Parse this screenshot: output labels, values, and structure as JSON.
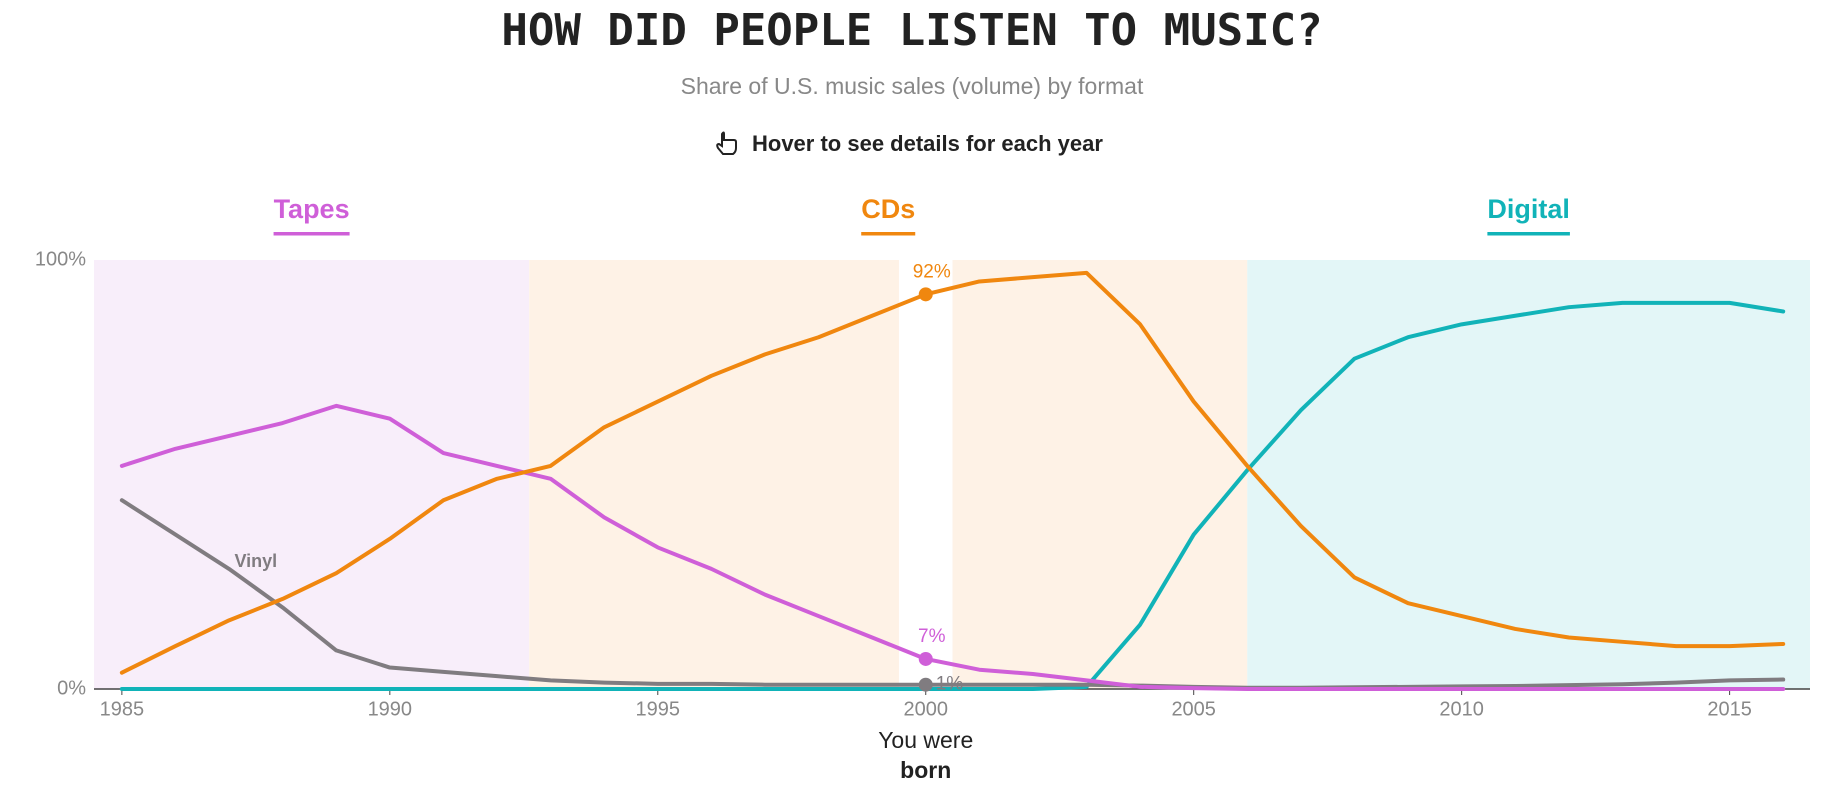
{
  "chart_data": {
    "type": "line",
    "title": "HOW DID PEOPLE LISTEN TO MUSIC?",
    "subtitle": "Share of U.S. music sales (volume) by format",
    "instruction": "Hover to see details for each year",
    "x": [
      1985,
      1986,
      1987,
      1988,
      1989,
      1990,
      1991,
      1992,
      1993,
      1994,
      1995,
      1996,
      1997,
      1998,
      1999,
      2000,
      2001,
      2002,
      2003,
      2004,
      2005,
      2006,
      2007,
      2008,
      2009,
      2010,
      2011,
      2012,
      2013,
      2014,
      2015,
      2016
    ],
    "series": [
      {
        "name": "Tapes",
        "color": "#cf5fd8",
        "values": [
          52,
          56,
          59,
          62,
          66,
          63,
          55,
          52,
          49,
          40,
          33,
          28,
          22,
          17,
          12,
          7,
          4.5,
          3.5,
          2,
          0.5,
          0.2,
          0,
          0,
          0,
          0,
          0,
          0,
          0,
          0,
          0,
          0,
          0
        ],
        "value_labels": [
          null,
          null,
          null,
          null,
          null,
          null,
          null,
          null,
          null,
          null,
          null,
          null,
          null,
          null,
          null,
          "7%",
          null,
          null,
          null,
          null,
          null,
          null,
          null,
          null,
          null,
          null,
          null,
          null,
          null,
          null,
          null,
          null
        ]
      },
      {
        "name": "CDs",
        "color": "#f0870f",
        "values": [
          3.8,
          10,
          16,
          21,
          27,
          35,
          44,
          49,
          52,
          61,
          67,
          73,
          78,
          82,
          87,
          92,
          95,
          96,
          97,
          85,
          67,
          52,
          38,
          26,
          20,
          17,
          14,
          12,
          11,
          10,
          10,
          10.5
        ],
        "value_labels": [
          null,
          null,
          null,
          null,
          null,
          null,
          null,
          null,
          null,
          null,
          null,
          null,
          null,
          null,
          null,
          "92%",
          null,
          null,
          null,
          null,
          null,
          null,
          null,
          null,
          null,
          null,
          null,
          null,
          null,
          null,
          null,
          null
        ]
      },
      {
        "name": "Digital",
        "color": "#11b3b8",
        "values": [
          0,
          0,
          0,
          0,
          0,
          0,
          0,
          0,
          0,
          0,
          0,
          0,
          0,
          0,
          0,
          0,
          0,
          0,
          0.5,
          15,
          36,
          51,
          65,
          77,
          82,
          85,
          87,
          89,
          90,
          90,
          90,
          88
        ]
      },
      {
        "name": "Vinyl",
        "color": "#807c80",
        "values": [
          44,
          36,
          28,
          19,
          9,
          5,
          4,
          3,
          2,
          1.5,
          1.2,
          1.2,
          1,
          1,
          1,
          1,
          1,
          1,
          1,
          0.8,
          0.5,
          0.3,
          0.3,
          0.4,
          0.5,
          0.6,
          0.7,
          0.9,
          1.1,
          1.5,
          2,
          2.2
        ],
        "value_labels": [
          null,
          null,
          null,
          null,
          null,
          null,
          null,
          null,
          null,
          null,
          null,
          null,
          null,
          null,
          null,
          "1%",
          null,
          null,
          null,
          null,
          null,
          null,
          null,
          null,
          null,
          null,
          null,
          null,
          null,
          null,
          null,
          null
        ]
      }
    ],
    "eras": [
      {
        "from": 1984.48,
        "to": 1992.6,
        "fill": "#f8eefa"
      },
      {
        "from": 1992.6,
        "to": 2006.0,
        "fill": "#fef2e6"
      },
      {
        "from": 2006.0,
        "to": 2016.5,
        "fill": "#e3f6f7"
      }
    ],
    "highlight": {
      "from": 1999.5,
      "to": 2000.5,
      "fill": "#ffffff",
      "annotation": [
        "You were",
        "born"
      ]
    },
    "xlim": [
      1984.48,
      2016.5
    ],
    "xticks": [
      1985,
      1990,
      1995,
      2000,
      2005,
      2010,
      2015
    ],
    "ylim": [
      0,
      100
    ],
    "yticks": [
      {
        "value": 0,
        "label": "0%"
      },
      {
        "value": 100,
        "label": "100%"
      }
    ]
  }
}
